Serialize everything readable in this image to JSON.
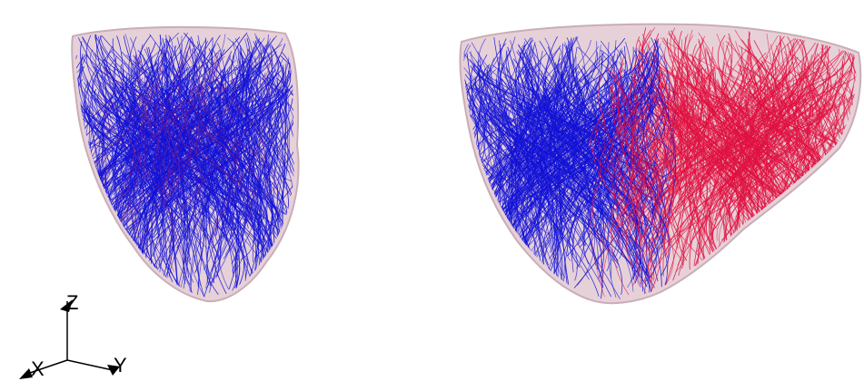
{
  "axes_triad": {
    "z_label": "Z",
    "x_label": "X",
    "y_label": "Y"
  },
  "colors": {
    "background": "#ffffff",
    "surface_fill": "#e7d1d8",
    "surface_edge": "#c9adb6",
    "fibers_blue": "#1212d6",
    "fibers_red": "#e01040"
  }
}
